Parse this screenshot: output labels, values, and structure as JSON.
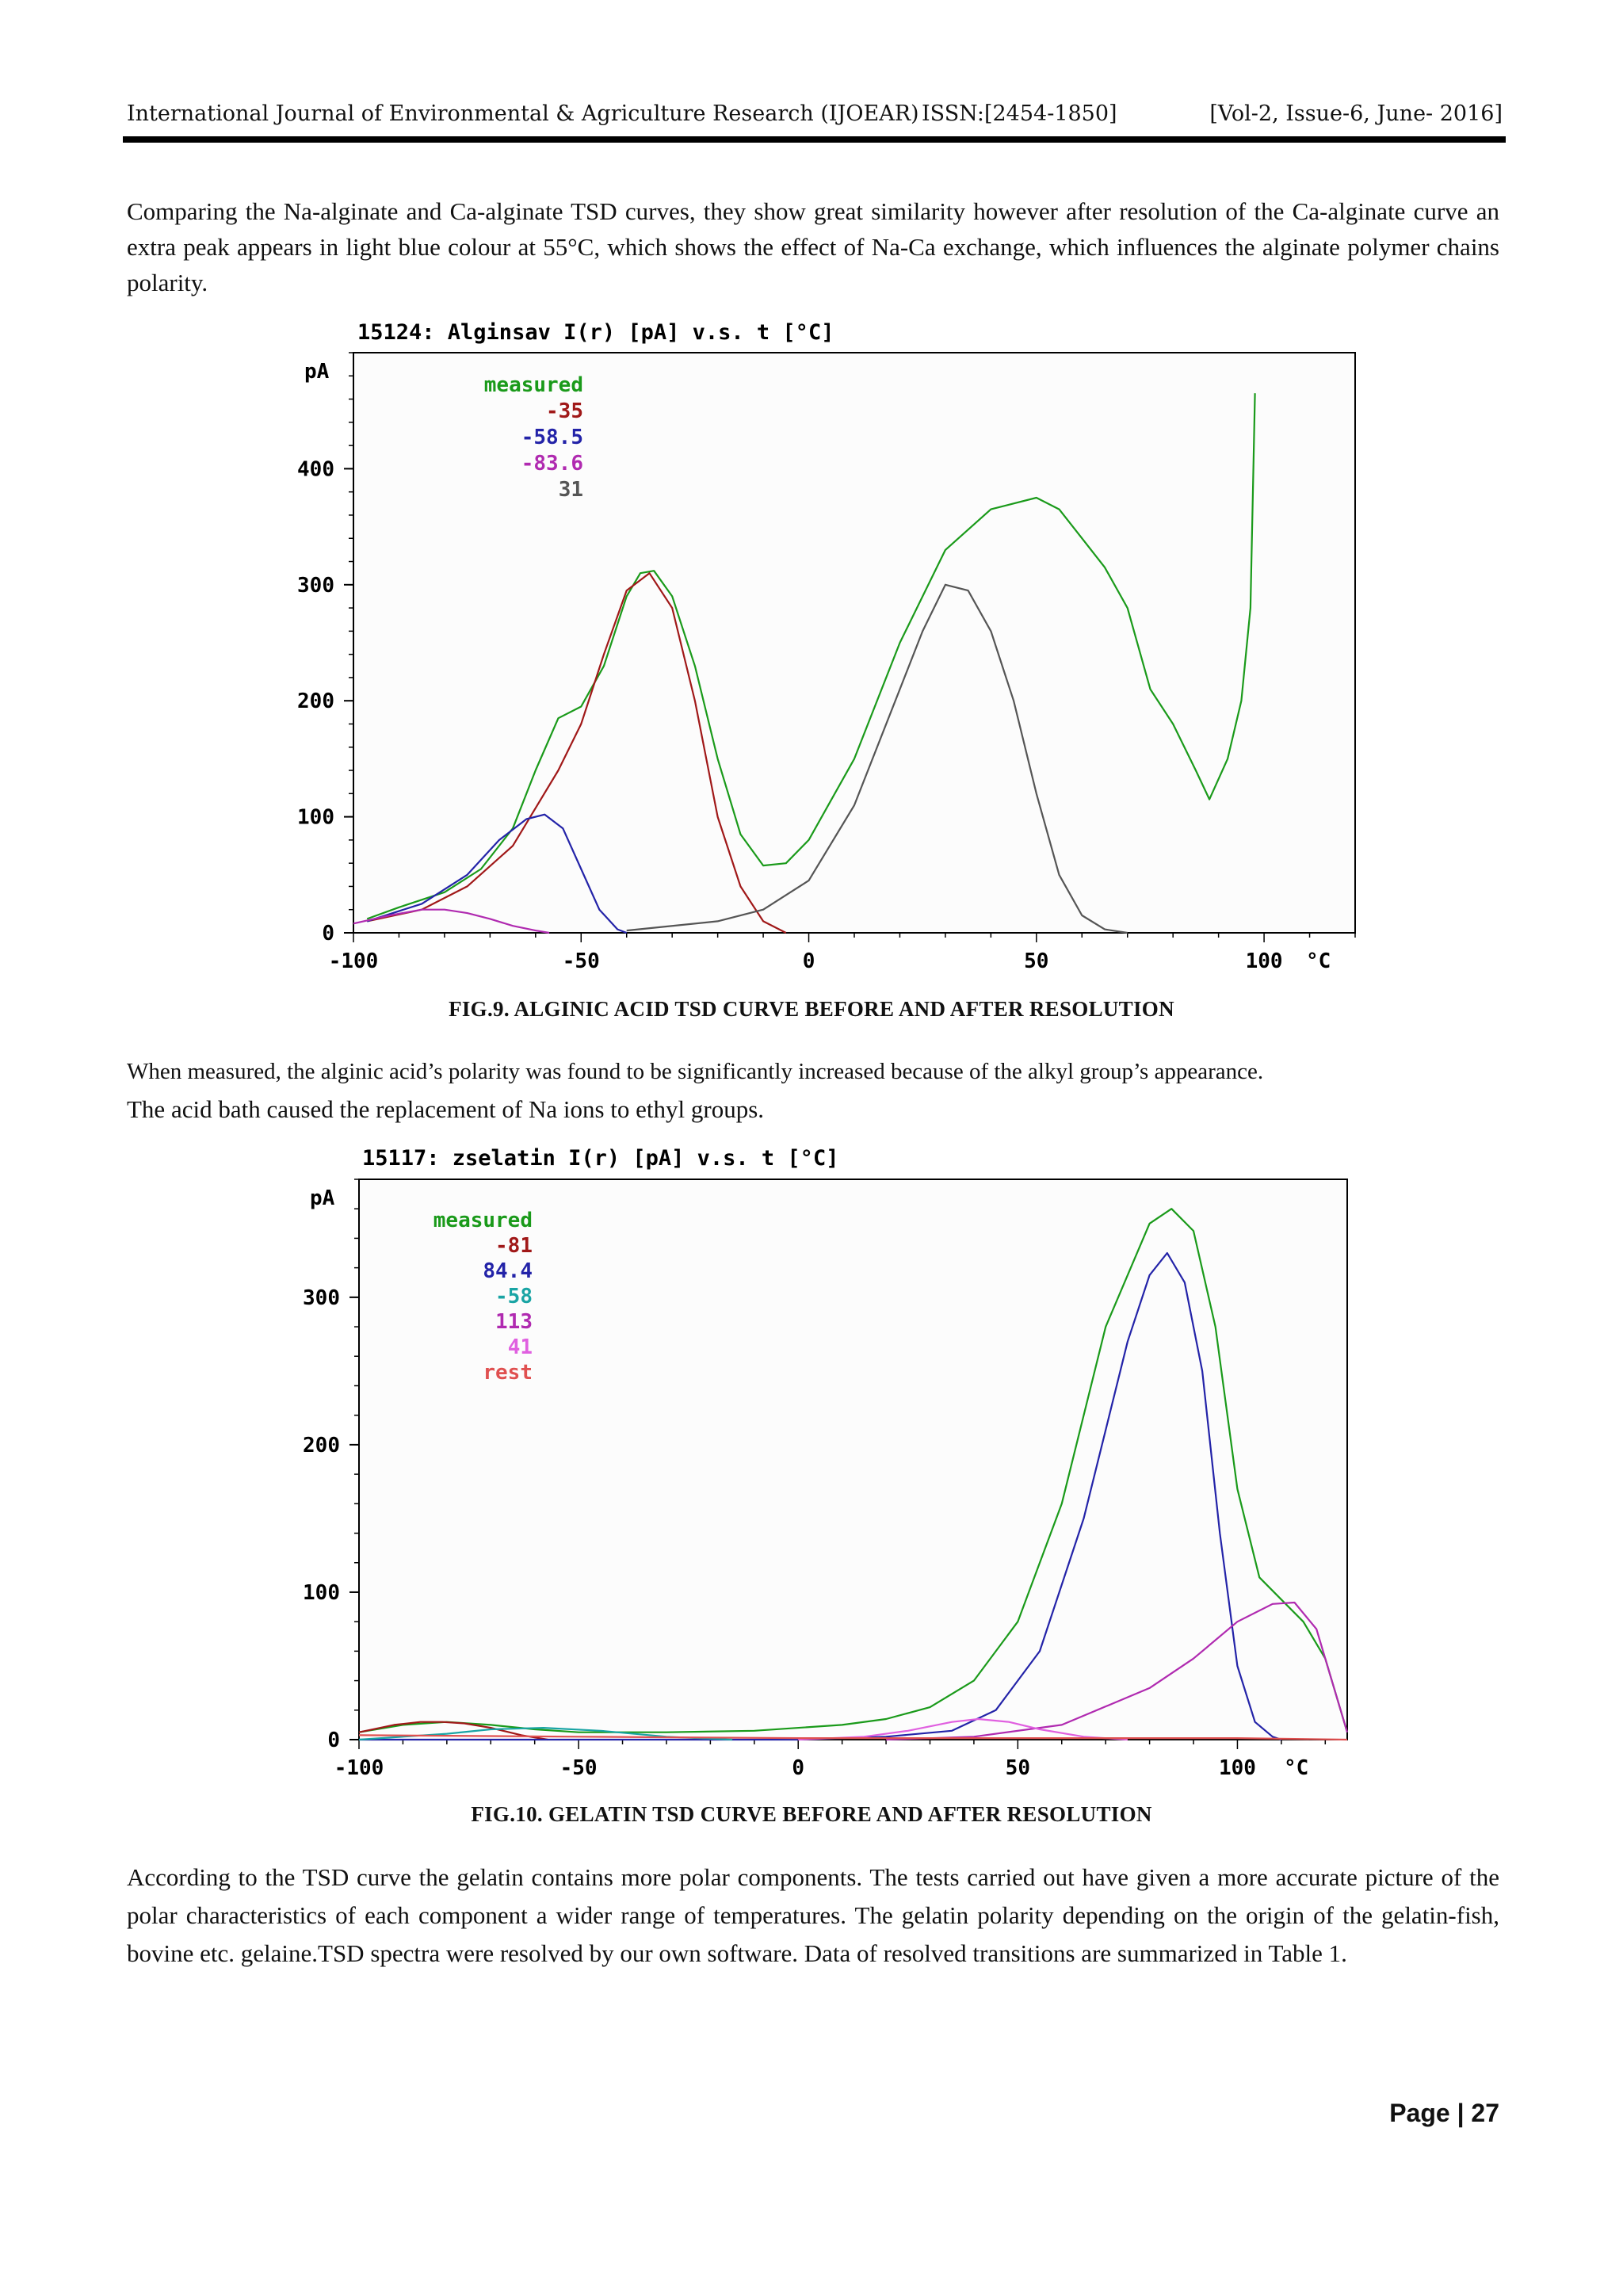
{
  "header": {
    "journal": "International Journal of Environmental & Agriculture Research (IJOEAR)",
    "issn": "ISSN:[2454-1850]",
    "volume": "[Vol-2, Issue-6, June- 2016]"
  },
  "paragraphs": {
    "p1": "Comparing the Na-alginate and Ca-alginate TSD curves, they show great similarity however after resolution of the Ca-alginate curve an extra peak appears in light blue colour at 55°C, which shows the effect of Na-Ca exchange, which influences the alginate polymer chains polarity.",
    "p2a": "When measured, the alginic acid’s polarity was found to be significantly increased because of the alkyl group’s appearance.",
    "p2b": "The acid bath caused the replacement of Na ions to ethyl groups.",
    "p3": "According to the TSD curve the gelatin contains more polar components. The tests carried out have given a more accurate picture of the polar characteristics of each component a wider range of temperatures. The gelatin polarity depending on the origin of the gelatin-fish, bovine etc. gelaine.TSD spectra were resolved by our own software. Data of resolved transitions are summarized in Table 1."
  },
  "captions": {
    "fig9": "FIG.9. ALGINIC ACID TSD CURVE BEFORE AND AFTER RESOLUTION",
    "fig10": "FIG.10. GELATIN TSD CURVE BEFORE AND AFTER RESOLUTION"
  },
  "page": "Page | 27",
  "chart_data": [
    {
      "type": "line",
      "title": "15124:  Alginsav     I(r) [pA]  v.s.  t [°C]",
      "ylabel": "pA",
      "xunit": "°C",
      "xlim": [
        -100,
        120
      ],
      "ylim": [
        0,
        500
      ],
      "xticks": [
        "-100",
        "-50",
        "0",
        "50",
        "100"
      ],
      "yticks": [
        "0",
        "100",
        "200",
        "300",
        "400"
      ],
      "legend": [
        "measured",
        "-35",
        "-58.5",
        "-83.6",
        "31"
      ],
      "legend_position": "top-left",
      "series": [
        {
          "name": "measured",
          "color": "#1a9a1a",
          "x": [
            -97,
            -90,
            -80,
            -72,
            -65,
            -60,
            -55,
            -50,
            -45,
            -40,
            -37,
            -34,
            -30,
            -25,
            -20,
            -15,
            -10,
            -5,
            0,
            10,
            20,
            30,
            40,
            50,
            55,
            60,
            65,
            70,
            75,
            80,
            85,
            88,
            92,
            95,
            97,
            98
          ],
          "y": [
            12,
            22,
            35,
            55,
            90,
            140,
            185,
            195,
            230,
            290,
            310,
            312,
            290,
            230,
            150,
            85,
            58,
            60,
            80,
            150,
            250,
            330,
            365,
            375,
            365,
            340,
            315,
            280,
            210,
            180,
            140,
            115,
            150,
            200,
            280,
            465
          ]
        },
        {
          "name": "-35",
          "color": "#a01818",
          "x": [
            -97,
            -85,
            -75,
            -65,
            -55,
            -50,
            -45,
            -40,
            -35,
            -30,
            -25,
            -20,
            -15,
            -10,
            -5
          ],
          "y": [
            10,
            20,
            40,
            75,
            140,
            180,
            240,
            295,
            310,
            280,
            200,
            100,
            40,
            10,
            0
          ]
        },
        {
          "name": "-58.5",
          "color": "#2323a8",
          "x": [
            -97,
            -85,
            -75,
            -68,
            -62,
            -58,
            -54,
            -50,
            -46,
            -42,
            -40
          ],
          "y": [
            10,
            25,
            50,
            80,
            98,
            102,
            90,
            55,
            20,
            3,
            0
          ]
        },
        {
          "name": "-83.6",
          "color": "#b02ab0",
          "x": [
            -100,
            -92,
            -85,
            -80,
            -75,
            -70,
            -65,
            -60,
            -57
          ],
          "y": [
            8,
            15,
            20,
            20,
            17,
            12,
            6,
            2,
            0
          ]
        },
        {
          "name": "31",
          "color": "#555555",
          "x": [
            -40,
            -20,
            -10,
            0,
            10,
            20,
            25,
            30,
            35,
            40,
            45,
            50,
            55,
            60,
            65,
            70
          ],
          "y": [
            2,
            10,
            20,
            45,
            110,
            210,
            260,
            300,
            295,
            260,
            200,
            120,
            50,
            15,
            3,
            0
          ]
        }
      ]
    },
    {
      "type": "line",
      "title": "15117:  zselatin     I(r) [pA]  v.s.  t [°C]",
      "ylabel": "pA",
      "xunit": "°C",
      "xlim": [
        -100,
        125
      ],
      "ylim": [
        0,
        380
      ],
      "xticks": [
        "-100",
        "-50",
        "0",
        "50",
        "100"
      ],
      "yticks": [
        "0",
        "100",
        "200",
        "300"
      ],
      "legend": [
        "measured",
        "-81",
        "84.4",
        "-58",
        "113",
        "41",
        "rest"
      ],
      "legend_position": "top-left",
      "series": [
        {
          "name": "measured",
          "color": "#1a9a1a",
          "x": [
            -100,
            -90,
            -80,
            -70,
            -60,
            -50,
            -30,
            -10,
            10,
            20,
            30,
            40,
            50,
            60,
            70,
            80,
            85,
            90,
            95,
            100,
            105,
            110,
            115,
            120,
            125
          ],
          "y": [
            5,
            10,
            12,
            10,
            7,
            5,
            5,
            6,
            10,
            14,
            22,
            40,
            80,
            160,
            280,
            350,
            360,
            345,
            280,
            170,
            110,
            95,
            80,
            55,
            5
          ]
        },
        {
          "name": "-81",
          "color": "#a01818",
          "x": [
            -100,
            -92,
            -86,
            -81,
            -76,
            -70,
            -63,
            -57
          ],
          "y": [
            5,
            10,
            12,
            12,
            11,
            8,
            3,
            0
          ]
        },
        {
          "name": "84.4",
          "color": "#2323a8",
          "x": [
            -100,
            0,
            20,
            35,
            45,
            55,
            65,
            75,
            80,
            84,
            88,
            92,
            96,
            100,
            104,
            108,
            110
          ],
          "y": [
            0,
            0,
            2,
            6,
            20,
            60,
            150,
            270,
            315,
            330,
            310,
            250,
            140,
            50,
            12,
            2,
            0
          ]
        },
        {
          "name": "-58",
          "color": "#19a4a4",
          "x": [
            -100,
            -80,
            -70,
            -58,
            -45,
            -30,
            -15
          ],
          "y": [
            0,
            4,
            7,
            8,
            6,
            2,
            0
          ]
        },
        {
          "name": "113",
          "color": "#b02ab0",
          "x": [
            20,
            40,
            60,
            80,
            90,
            100,
            108,
            113,
            118,
            122,
            125
          ],
          "y": [
            0,
            2,
            10,
            35,
            55,
            80,
            92,
            93,
            75,
            35,
            5
          ]
        },
        {
          "name": "41",
          "color": "#e060e0",
          "x": [
            0,
            15,
            25,
            35,
            41,
            48,
            55,
            65,
            75
          ],
          "y": [
            0,
            2,
            6,
            12,
            14,
            12,
            7,
            2,
            0
          ]
        },
        {
          "name": "rest",
          "color": "#e05050",
          "x": [
            -100,
            -50,
            0,
            50,
            100,
            125
          ],
          "y": [
            3,
            2,
            1,
            1,
            1,
            0
          ]
        }
      ]
    }
  ]
}
